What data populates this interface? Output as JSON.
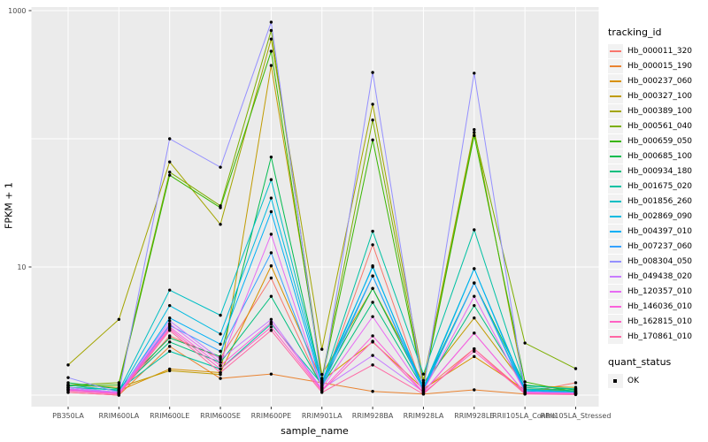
{
  "chart_data": {
    "type": "line",
    "title": "",
    "xlabel": "sample_name",
    "ylabel": "FPKM + 1",
    "y_scale": "log10",
    "ylim": [
      0.8,
      1100
    ],
    "grid": true,
    "legend_position": "right",
    "panel_bg": "#EBEBEB",
    "grid_color": "#FFFFFF",
    "point_color": "#000000",
    "tick_color": "#333333",
    "tick_label_color": "#4D4D4D",
    "yticks": [
      {
        "label": "10",
        "value": 10
      },
      {
        "label": "1000",
        "value": 1000
      }
    ],
    "gridline_values": [
      1,
      10,
      100,
      1000
    ],
    "categories": [
      "PB350LA",
      "RRIM600LA",
      "RRIM600LE",
      "RRIM600SE",
      "RRIM600PE",
      "RRIM901LA",
      "RRIM928BA",
      "RRIM928LA",
      "RRIM928LE",
      "RRII105LA_Control",
      "RRII105LA_Stressed"
    ],
    "series": [
      {
        "name": "Hb_000011_320",
        "color": "#F8766D",
        "values": [
          1.1,
          1.02,
          2.9,
          1.95,
          8.2,
          1.15,
          14.9,
          1.1,
          2.3,
          1.05,
          1.25
        ]
      },
      {
        "name": "Hb_000015_190",
        "color": "#EA8331",
        "values": [
          1.05,
          1.0,
          2.4,
          1.35,
          1.46,
          1.25,
          1.07,
          1.02,
          1.1,
          1.02,
          1.08
        ]
      },
      {
        "name": "Hb_000237_060",
        "color": "#D89000",
        "values": [
          1.2,
          1.08,
          1.6,
          1.5,
          10.2,
          1.3,
          2.6,
          1.12,
          2.0,
          1.1,
          1.12
        ]
      },
      {
        "name": "Hb_000327_100",
        "color": "#C09B00",
        "values": [
          1.2,
          1.15,
          1.55,
          1.45,
          373,
          1.45,
          6.8,
          1.25,
          4.0,
          1.18,
          1.15
        ]
      },
      {
        "name": "Hb_000389_100",
        "color": "#A3A500",
        "values": [
          1.72,
          3.9,
          66,
          21.5,
          600,
          2.28,
          186,
          1.3,
          118,
          1.12,
          1.08
        ]
      },
      {
        "name": "Hb_000561_040",
        "color": "#7CAE00",
        "values": [
          1.2,
          1.25,
          55,
          30,
          700,
          1.35,
          140,
          1.2,
          112,
          2.55,
          1.61
        ]
      },
      {
        "name": "Hb_000659_050",
        "color": "#39B600",
        "values": [
          1.18,
          1.2,
          52,
          29,
          482,
          1.3,
          98,
          1.18,
          106,
          1.27,
          1.05
        ]
      },
      {
        "name": "Hb_000685_100",
        "color": "#00BB4E",
        "values": [
          1.25,
          1.12,
          2.8,
          2.0,
          72,
          1.25,
          6.8,
          1.15,
          7.5,
          1.2,
          1.1
        ]
      },
      {
        "name": "Hb_000934_180",
        "color": "#00BF7D",
        "values": [
          1.15,
          1.1,
          2.6,
          1.8,
          5.9,
          1.18,
          5.3,
          1.12,
          5.0,
          1.15,
          1.08
        ]
      },
      {
        "name": "Hb_001675_020",
        "color": "#00C1A3",
        "values": [
          1.15,
          1.1,
          2.2,
          1.6,
          3.6,
          1.22,
          19,
          1.46,
          19.5,
          1.18,
          1.12
        ]
      },
      {
        "name": "Hb_001856_260",
        "color": "#00BFC4",
        "values": [
          1.2,
          1.08,
          6.6,
          4.2,
          48,
          1.28,
          10,
          1.15,
          9.7,
          1.12,
          1.06
        ]
      },
      {
        "name": "Hb_002869_090",
        "color": "#00BAE0",
        "values": [
          1.15,
          1.05,
          5.0,
          3.0,
          34.5,
          1.25,
          8.5,
          1.12,
          7.5,
          1.1,
          1.05
        ]
      },
      {
        "name": "Hb_004397_010",
        "color": "#00B0F6",
        "values": [
          1.12,
          1.04,
          4.0,
          2.5,
          27,
          1.2,
          10.2,
          1.1,
          9.7,
          1.08,
          1.04
        ]
      },
      {
        "name": "Hb_007237_060",
        "color": "#35A2FF",
        "values": [
          1.1,
          1.03,
          3.5,
          2.2,
          12.9,
          1.15,
          8.5,
          1.08,
          7.5,
          1.06,
          1.03
        ]
      },
      {
        "name": "Hb_008304_050",
        "color": "#9590FF",
        "values": [
          1.37,
          1.05,
          100,
          60,
          813,
          1.2,
          329,
          1.1,
          325,
          1.05,
          1.04
        ]
      },
      {
        "name": "Hb_049438_020",
        "color": "#C77CFF",
        "values": [
          1.15,
          1.05,
          3.8,
          1.9,
          3.9,
          1.12,
          2.04,
          1.06,
          3.05,
          1.05,
          1.03
        ]
      },
      {
        "name": "Hb_120357_010",
        "color": "#E76BF3",
        "values": [
          1.12,
          1.04,
          3.6,
          1.8,
          18,
          1.14,
          4.1,
          1.08,
          5.9,
          1.06,
          1.04
        ]
      },
      {
        "name": "Hb_146036_010",
        "color": "#FA62DB",
        "values": [
          1.1,
          1.03,
          3.4,
          1.7,
          3.7,
          1.1,
          2.9,
          1.05,
          3.05,
          1.04,
          1.02
        ]
      },
      {
        "name": "Hb_162815_010",
        "color": "#FF61C3",
        "values": [
          1.08,
          1.02,
          3.3,
          1.6,
          3.4,
          1.08,
          2.63,
          1.04,
          2.2,
          1.03,
          1.02
        ]
      },
      {
        "name": "Hb_170861_010",
        "color": "#FF67A4",
        "values": [
          1.05,
          1.0,
          3.2,
          1.5,
          3.2,
          1.05,
          1.72,
          1.02,
          2.3,
          1.02,
          1.01
        ]
      }
    ],
    "legend": {
      "tracking_title": "tracking_id",
      "quant_title": "quant_status",
      "quant_items": [
        {
          "label": "OK",
          "marker": "black-square"
        }
      ]
    }
  }
}
